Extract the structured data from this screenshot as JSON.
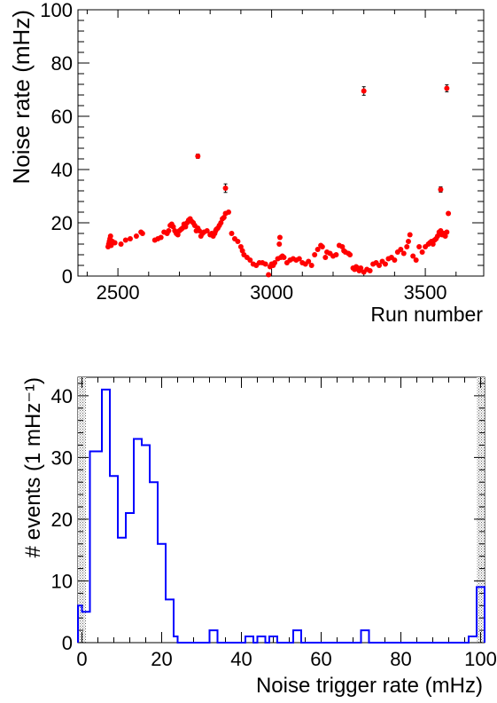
{
  "chart_data": [
    {
      "type": "scatter",
      "xlabel": "Run number",
      "ylabel": "Noise rate (mHz)",
      "xlim": [
        2370,
        3690
      ],
      "ylim": [
        0,
        100
      ],
      "xticks": [
        "2500",
        "3000",
        "3500"
      ],
      "yticks": [
        "0",
        "20",
        "40",
        "60",
        "80",
        "100"
      ],
      "marker_color": "#ff0000",
      "error_bar_color": "#000000",
      "grid": false,
      "points": [
        [
          2468,
          11
        ],
        [
          2470,
          12
        ],
        [
          2472,
          13
        ],
        [
          2474,
          14
        ],
        [
          2476,
          15
        ],
        [
          2478,
          11.5
        ],
        [
          2482,
          13
        ],
        [
          2490,
          12.5
        ],
        [
          2510,
          12
        ],
        [
          2525,
          13.5
        ],
        [
          2540,
          14
        ],
        [
          2560,
          15
        ],
        [
          2575,
          16.5
        ],
        [
          2580,
          16
        ],
        [
          2620,
          13.5
        ],
        [
          2630,
          14
        ],
        [
          2640,
          14.5
        ],
        [
          2650,
          16.5
        ],
        [
          2660,
          16
        ],
        [
          2665,
          17
        ],
        [
          2670,
          19
        ],
        [
          2675,
          19.5
        ],
        [
          2680,
          18.5
        ],
        [
          2685,
          17
        ],
        [
          2690,
          16
        ],
        [
          2695,
          15.5
        ],
        [
          2700,
          17
        ],
        [
          2705,
          17.5
        ],
        [
          2710,
          18
        ],
        [
          2715,
          19.5
        ],
        [
          2720,
          18.5
        ],
        [
          2725,
          20
        ],
        [
          2730,
          21
        ],
        [
          2735,
          21.5
        ],
        [
          2740,
          20.5
        ],
        [
          2745,
          20
        ],
        [
          2750,
          19
        ],
        [
          2755,
          17
        ],
        [
          2760,
          18
        ],
        [
          2765,
          17
        ],
        [
          2770,
          15
        ],
        [
          2775,
          16
        ],
        [
          2780,
          16.5
        ],
        [
          2790,
          17
        ],
        [
          2800,
          15.5
        ],
        [
          2805,
          16
        ],
        [
          2810,
          15
        ],
        [
          2815,
          16
        ],
        [
          2818,
          17
        ],
        [
          2820,
          17.5
        ],
        [
          2825,
          18
        ],
        [
          2830,
          19
        ],
        [
          2835,
          20
        ],
        [
          2840,
          21.5
        ],
        [
          2845,
          22
        ],
        [
          2850,
          23.5
        ],
        [
          2860,
          24
        ],
        [
          2870,
          16
        ],
        [
          2880,
          14
        ],
        [
          2890,
          13
        ],
        [
          2900,
          11
        ],
        [
          2905,
          9.5
        ],
        [
          2910,
          8
        ],
        [
          2920,
          7
        ],
        [
          2930,
          6
        ],
        [
          2940,
          4.5
        ],
        [
          2950,
          4
        ],
        [
          2960,
          5
        ],
        [
          2970,
          5
        ],
        [
          2980,
          4.5
        ],
        [
          2990,
          0.5
        ],
        [
          2995,
          3.5
        ],
        [
          3000,
          4.5
        ],
        [
          3005,
          4
        ],
        [
          3010,
          5
        ],
        [
          3020,
          6.5
        ],
        [
          3025,
          12
        ],
        [
          3027,
          14.5
        ],
        [
          3030,
          7
        ],
        [
          3035,
          7.5
        ],
        [
          3040,
          7
        ],
        [
          3050,
          5
        ],
        [
          3060,
          6
        ],
        [
          3070,
          6.5
        ],
        [
          3080,
          6
        ],
        [
          3090,
          6.5
        ],
        [
          3100,
          5
        ],
        [
          3110,
          4.5
        ],
        [
          3120,
          5.5
        ],
        [
          3130,
          4
        ],
        [
          3140,
          8
        ],
        [
          3150,
          10
        ],
        [
          3160,
          11.5
        ],
        [
          3165,
          11
        ],
        [
          3175,
          7
        ],
        [
          3180,
          9
        ],
        [
          3190,
          8.5
        ],
        [
          3200,
          7.5
        ],
        [
          3210,
          8
        ],
        [
          3220,
          11.5
        ],
        [
          3230,
          11
        ],
        [
          3235,
          9.5
        ],
        [
          3240,
          9
        ],
        [
          3250,
          8.5
        ],
        [
          3255,
          8
        ],
        [
          3265,
          3
        ],
        [
          3270,
          2.5
        ],
        [
          3275,
          3.5
        ],
        [
          3280,
          3
        ],
        [
          3285,
          2
        ],
        [
          3290,
          3
        ],
        [
          3300,
          1.5
        ],
        [
          3310,
          2.5
        ],
        [
          3320,
          2
        ],
        [
          3330,
          4.5
        ],
        [
          3340,
          5
        ],
        [
          3350,
          4
        ],
        [
          3360,
          5.5
        ],
        [
          3370,
          4.5
        ],
        [
          3380,
          6.5
        ],
        [
          3390,
          7
        ],
        [
          3400,
          6
        ],
        [
          3410,
          9
        ],
        [
          3420,
          10
        ],
        [
          3430,
          8.5
        ],
        [
          3440,
          11
        ],
        [
          3445,
          13
        ],
        [
          3450,
          15.5
        ],
        [
          3460,
          7.5
        ],
        [
          3470,
          6
        ],
        [
          3480,
          11
        ],
        [
          3490,
          9
        ],
        [
          3500,
          11
        ],
        [
          3510,
          12
        ],
        [
          3515,
          12.5
        ],
        [
          3520,
          13
        ],
        [
          3525,
          12
        ],
        [
          3530,
          13.5
        ],
        [
          3535,
          14
        ],
        [
          3540,
          15
        ],
        [
          3545,
          16.5
        ],
        [
          3550,
          17
        ],
        [
          3555,
          15.5
        ],
        [
          3560,
          16
        ],
        [
          3565,
          15
        ],
        [
          3570,
          16.5
        ],
        [
          3575,
          23.5
        ]
      ],
      "points_with_errors": [
        [
          2760,
          45,
          0.8
        ],
        [
          2850,
          33,
          1.6
        ],
        [
          3300,
          69.5,
          1.6
        ],
        [
          3570,
          70.5,
          1.3
        ],
        [
          3550,
          32.5,
          1
        ]
      ]
    },
    {
      "type": "histogram",
      "xlabel": "Noise trigger rate (mHz)",
      "ylabel": "# events (1 mHz⁻¹)",
      "xlim": [
        -1,
        101
      ],
      "ylim": [
        0,
        43
      ],
      "xticks": [
        "0",
        "20",
        "40",
        "60",
        "80",
        "100"
      ],
      "yticks": [
        "0",
        "10",
        "20",
        "30",
        "40"
      ],
      "line_color": "#0000ff",
      "bin_edges": [
        -1,
        0,
        1,
        2,
        3,
        4,
        5,
        6,
        7,
        8,
        9,
        10,
        11,
        12,
        13,
        14,
        15,
        16,
        17,
        18,
        19,
        20,
        21,
        22,
        23,
        24,
        25,
        26,
        27,
        28,
        29,
        30,
        31,
        32,
        33,
        34,
        35,
        36,
        37,
        38,
        39,
        40,
        41,
        42,
        43,
        44,
        45,
        46,
        47,
        48,
        49,
        50,
        51,
        52,
        53,
        54,
        55,
        56,
        57,
        58,
        59,
        60,
        61,
        62,
        63,
        64,
        65,
        66,
        67,
        68,
        69,
        70,
        71,
        72,
        73,
        74,
        75,
        76,
        77,
        78,
        79,
        80,
        81,
        82,
        83,
        84,
        85,
        86,
        87,
        88,
        89,
        90,
        91,
        92,
        93,
        94,
        95,
        96,
        97,
        98,
        99,
        100,
        101
      ],
      "counts": [
        6,
        5,
        5,
        31,
        31,
        31,
        41,
        41,
        27,
        27,
        17,
        17,
        21,
        21,
        33,
        33,
        32,
        32,
        26,
        26,
        16,
        16,
        7,
        7,
        1,
        0,
        0,
        0,
        0,
        0,
        0,
        0,
        0,
        2,
        2,
        0,
        0,
        0,
        0,
        0,
        0,
        0,
        1,
        1,
        0,
        1,
        1,
        0,
        1,
        1,
        0,
        0,
        0,
        0,
        2,
        2,
        0,
        0,
        0,
        0,
        0,
        0,
        0,
        0,
        0,
        0,
        0,
        0,
        0,
        0,
        0,
        2,
        2,
        0,
        0,
        0,
        0,
        0,
        0,
        0,
        0,
        0,
        0,
        0,
        0,
        0,
        0,
        0,
        0,
        0,
        0,
        0,
        0,
        0,
        0,
        0,
        0,
        0,
        1,
        1,
        9,
        9
      ]
    }
  ]
}
